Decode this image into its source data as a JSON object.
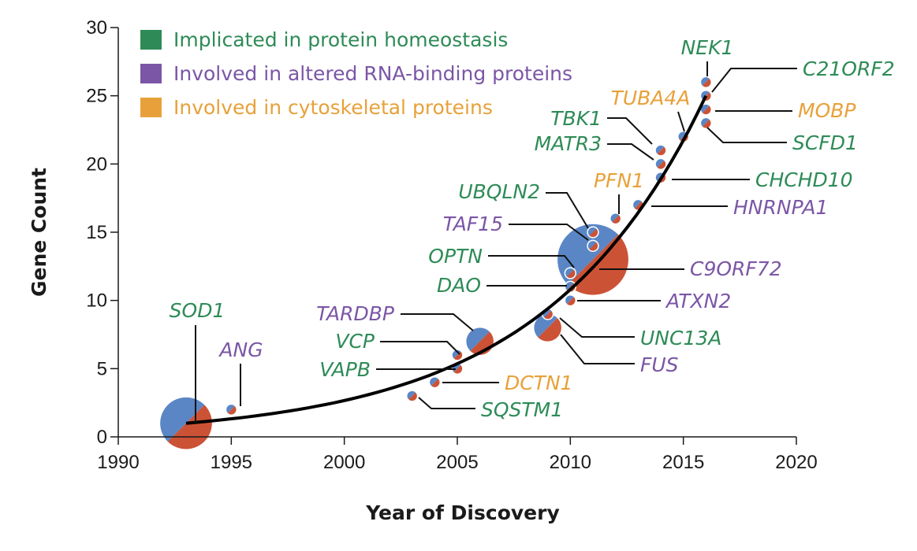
{
  "colors": {
    "protein_homeostasis": "#2e8b57",
    "rna_binding": "#7b56a6",
    "cytoskeletal": "#e8a13a",
    "bubble_blue": "#5a86c6",
    "bubble_red": "#cc5236",
    "curve": "#000000"
  },
  "chart_data": {
    "type": "scatter",
    "title": "",
    "xlabel": "Year of Discovery",
    "ylabel": "Gene Count",
    "xlim": [
      1990,
      2020
    ],
    "ylim": [
      0,
      30
    ],
    "x_ticks": [
      "1990",
      "1995",
      "2000",
      "2005",
      "2010",
      "2015",
      "2020"
    ],
    "y_ticks": [
      "0",
      "5",
      "10",
      "15",
      "20",
      "25",
      "30"
    ],
    "grid": false,
    "legend_position": "top-left",
    "legend": [
      {
        "label": "Implicated in protein homeostasis",
        "category": "protein_homeostasis",
        "color": "#2e8b57"
      },
      {
        "label": "Involved in altered RNA-binding proteins",
        "category": "rna_binding",
        "color": "#7b56a6"
      },
      {
        "label": "Involved in cytoskeletal proteins",
        "category": "cytoskeletal",
        "color": "#e8a13a"
      }
    ],
    "genes": [
      {
        "name": "SOD1",
        "year": 1993,
        "count": 1,
        "bubble_size": 1.9,
        "category": "protein_homeostasis"
      },
      {
        "name": "ANG",
        "year": 1995,
        "count": 2,
        "bubble_size": 0.4,
        "category": "rna_binding"
      },
      {
        "name": "SQSTM1",
        "year": 2003,
        "count": 3,
        "bubble_size": 0.4,
        "category": "protein_homeostasis"
      },
      {
        "name": "DCTN1",
        "year": 2004,
        "count": 4,
        "bubble_size": 0.4,
        "category": "cytoskeletal"
      },
      {
        "name": "VAPB",
        "year": 2005,
        "count": 5,
        "bubble_size": 0.4,
        "category": "protein_homeostasis"
      },
      {
        "name": "VCP",
        "year": 2005,
        "count": 6,
        "bubble_size": 0.4,
        "category": "protein_homeostasis"
      },
      {
        "name": "TARDBP",
        "year": 2006,
        "count": 7,
        "bubble_size": 1.0,
        "category": "rna_binding"
      },
      {
        "name": "FUS",
        "year": 2009,
        "count": 8,
        "bubble_size": 1.0,
        "category": "rna_binding"
      },
      {
        "name": "UNC13A",
        "year": 2009,
        "count": 9,
        "bubble_size": 0.4,
        "category": "protein_homeostasis"
      },
      {
        "name": "ATXN2",
        "year": 2010,
        "count": 10,
        "bubble_size": 0.4,
        "category": "rna_binding"
      },
      {
        "name": "DAO",
        "year": 2010,
        "count": 11,
        "bubble_size": 0.4,
        "category": "protein_homeostasis"
      },
      {
        "name": "OPTN",
        "year": 2010,
        "count": 12,
        "bubble_size": 0.4,
        "category": "protein_homeostasis"
      },
      {
        "name": "C9ORF72",
        "year": 2011,
        "count": 13,
        "bubble_size": 2.6,
        "category": "rna_binding"
      },
      {
        "name": "TAF15",
        "year": 2011,
        "count": 14,
        "bubble_size": 0.4,
        "category": "rna_binding"
      },
      {
        "name": "UBQLN2",
        "year": 2011,
        "count": 15,
        "bubble_size": 0.4,
        "category": "protein_homeostasis"
      },
      {
        "name": "PFN1",
        "year": 2012,
        "count": 16,
        "bubble_size": 0.4,
        "category": "cytoskeletal"
      },
      {
        "name": "HNRNPA1",
        "year": 2013,
        "count": 17,
        "bubble_size": 0.4,
        "category": "rna_binding"
      },
      {
        "name": "CHCHD10",
        "year": 2014,
        "count": 19,
        "bubble_size": 0.4,
        "category": "protein_homeostasis"
      },
      {
        "name": "MATR3",
        "year": 2014,
        "count": 20,
        "bubble_size": 0.4,
        "category": "protein_homeostasis"
      },
      {
        "name": "TBK1",
        "year": 2014,
        "count": 21,
        "bubble_size": 0.4,
        "category": "protein_homeostasis"
      },
      {
        "name": "TUBA4A",
        "year": 2015,
        "count": 22,
        "bubble_size": 0.4,
        "category": "cytoskeletal"
      },
      {
        "name": "SCFD1",
        "year": 2016,
        "count": 23,
        "bubble_size": 0.4,
        "category": "protein_homeostasis"
      },
      {
        "name": "MOBP",
        "year": 2016,
        "count": 24,
        "bubble_size": 0.4,
        "category": "cytoskeletal"
      },
      {
        "name": "C21ORF2",
        "year": 2016,
        "count": 25,
        "bubble_size": 0.4,
        "category": "protein_homeostasis"
      },
      {
        "name": "NEK1",
        "year": 2016,
        "count": 26,
        "bubble_size": 0.4,
        "category": "protein_homeostasis"
      }
    ],
    "trend_curve": {
      "type": "exponential",
      "points": [
        [
          1993,
          1
        ],
        [
          2003,
          3
        ],
        [
          2006,
          6
        ],
        [
          2010,
          11
        ],
        [
          2013,
          17
        ],
        [
          2016,
          25
        ]
      ]
    }
  }
}
